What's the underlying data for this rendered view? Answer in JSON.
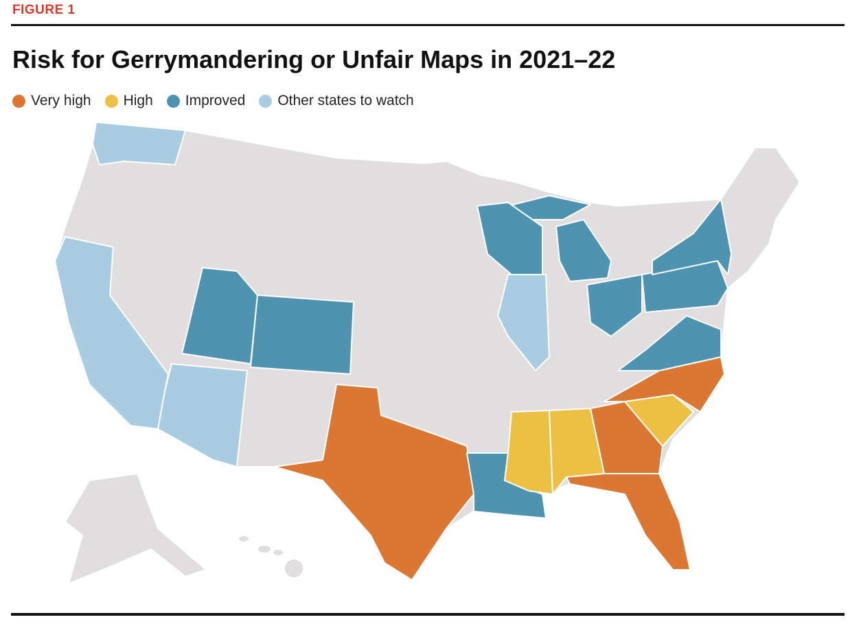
{
  "header": {
    "label": "FIGURE 1",
    "title": "Risk for Gerrymandering or Unfair Maps in 2021–22"
  },
  "legend": [
    {
      "label": "Very high",
      "color": "#d97733"
    },
    {
      "label": "High",
      "color": "#ebc043"
    },
    {
      "label": "Improved",
      "color": "#4e93b0"
    },
    {
      "label": "Other states to watch",
      "color": "#a8cde0"
    }
  ]
}
